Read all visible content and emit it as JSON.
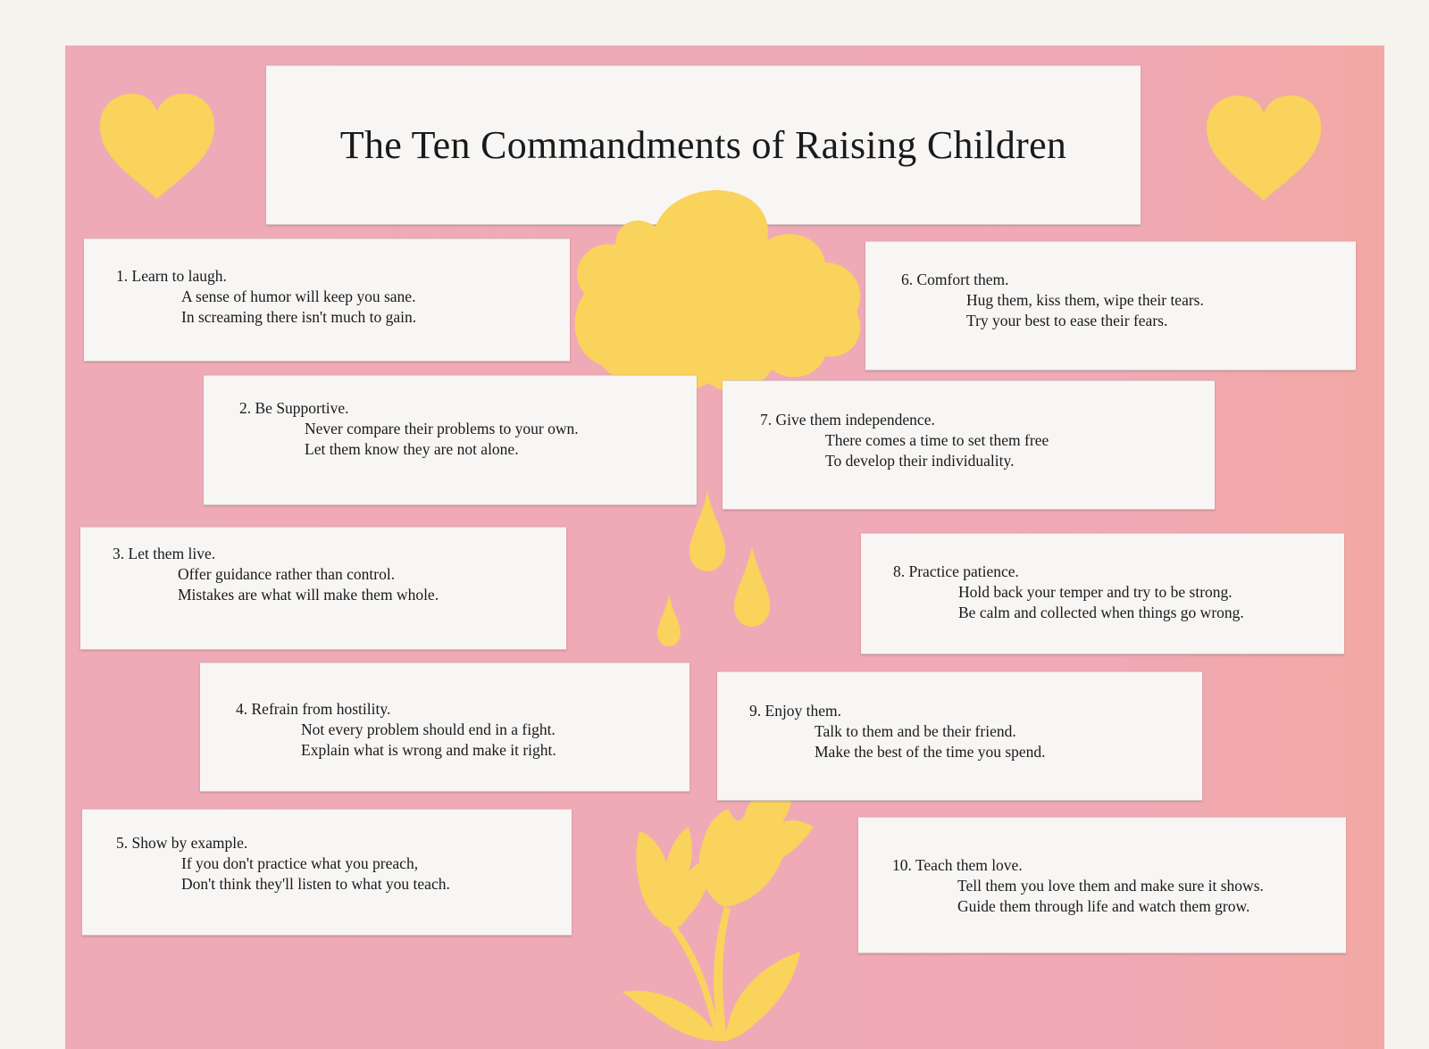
{
  "title": "The Ten Commandments of Raising Children",
  "colors": {
    "background": "#f5f4ef",
    "sheet": "#efaab7",
    "paper": "#f8f6f4",
    "cutout": "#f9d35c"
  },
  "decorations": [
    "heart-icon",
    "heart-icon",
    "cloud-icon",
    "raindrop-icon",
    "raindrop-icon",
    "raindrop-icon",
    "flower-plant-icon"
  ],
  "commandments": [
    {
      "number": "1.",
      "heading": "Learn to laugh.",
      "lines": [
        "A sense of humor will keep you sane.",
        "In screaming there isn't much to gain."
      ]
    },
    {
      "number": "2.",
      "heading": "Be Supportive.",
      "lines": [
        "Never compare their problems to your own.",
        "Let them know they are not alone."
      ]
    },
    {
      "number": "3.",
      "heading": "Let them live.",
      "lines": [
        "Offer guidance rather than control.",
        "Mistakes are what will make them whole."
      ]
    },
    {
      "number": "4.",
      "heading": "Refrain from hostility.",
      "lines": [
        "Not every problem should end in a fight.",
        "Explain what is wrong and make it right."
      ]
    },
    {
      "number": "5.",
      "heading": "Show by example.",
      "lines": [
        "If you don't practice what you preach,",
        "Don't think they'll listen to what you teach."
      ]
    },
    {
      "number": "6.",
      "heading": "Comfort them.",
      "lines": [
        "Hug them, kiss them, wipe their tears.",
        "Try your best to ease their fears."
      ]
    },
    {
      "number": "7.",
      "heading": "Give them independence.",
      "lines": [
        "There comes a time to set them free",
        "To develop their individuality."
      ]
    },
    {
      "number": "8.",
      "heading": "Practice patience.",
      "lines": [
        "Hold back your temper and try to be strong.",
        "Be calm and collected when things go wrong."
      ]
    },
    {
      "number": "9.",
      "heading": "Enjoy them.",
      "lines": [
        "Talk to them and be their friend.",
        "Make the best of the time you spend."
      ]
    },
    {
      "number": "10.",
      "heading": "Teach them love.",
      "lines": [
        "Tell them you love them and make sure it shows.",
        "Guide them through life and watch them grow."
      ]
    }
  ]
}
